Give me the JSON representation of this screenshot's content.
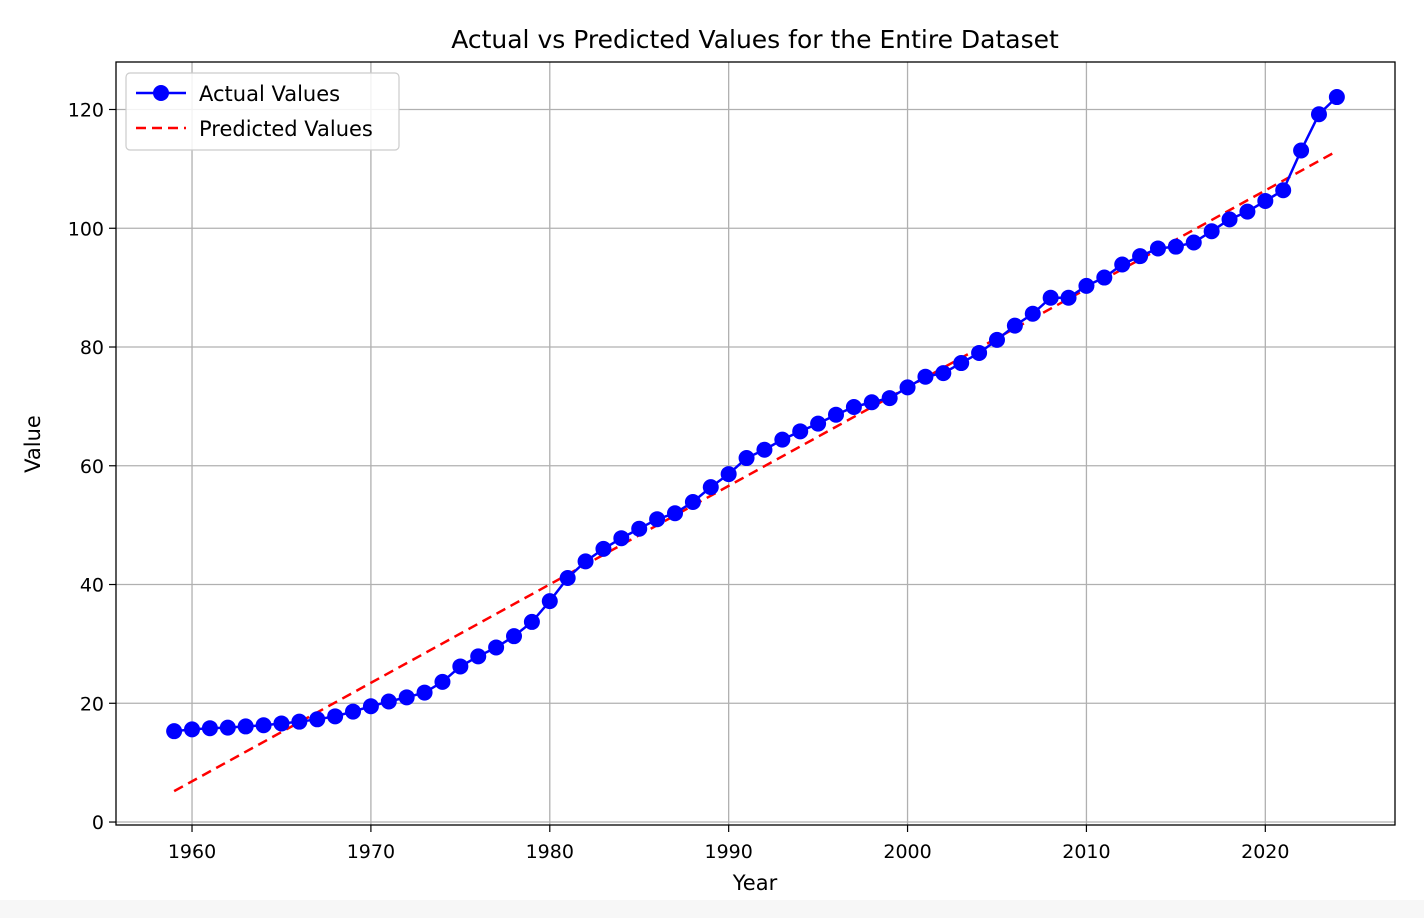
{
  "chart_data": {
    "type": "line",
    "title": "Actual vs Predicted Values for the Entire Dataset",
    "xlabel": "Year",
    "ylabel": "Value",
    "xlim": [
      1955.75,
      2027.25
    ],
    "ylim": [
      -0.5,
      128
    ],
    "xticks": [
      1960,
      1970,
      1980,
      1990,
      2000,
      2010,
      2020
    ],
    "yticks": [
      0,
      20,
      40,
      60,
      80,
      100,
      120
    ],
    "grid": true,
    "legend_position": "top-left",
    "x": [
      1959,
      1960,
      1961,
      1962,
      1963,
      1964,
      1965,
      1966,
      1967,
      1968,
      1969,
      1970,
      1971,
      1972,
      1973,
      1974,
      1975,
      1976,
      1977,
      1978,
      1979,
      1980,
      1981,
      1982,
      1983,
      1984,
      1985,
      1986,
      1987,
      1988,
      1989,
      1990,
      1991,
      1992,
      1993,
      1994,
      1995,
      1996,
      1997,
      1998,
      1999,
      2000,
      2001,
      2002,
      2003,
      2004,
      2005,
      2006,
      2007,
      2008,
      2009,
      2010,
      2011,
      2012,
      2013,
      2014,
      2015,
      2016,
      2017,
      2018,
      2019,
      2020,
      2021,
      2022,
      2023,
      2024
    ],
    "series": [
      {
        "name": "Actual Values",
        "style": "solid-with-markers",
        "color": "#0000ff",
        "values": [
          15.3,
          15.6,
          15.8,
          15.9,
          16.1,
          16.3,
          16.6,
          16.9,
          17.3,
          17.8,
          18.6,
          19.5,
          20.3,
          21.0,
          21.8,
          23.6,
          26.2,
          27.9,
          29.4,
          31.3,
          33.7,
          37.2,
          41.1,
          43.9,
          46.0,
          47.8,
          49.4,
          51.0,
          52.0,
          53.9,
          56.4,
          58.6,
          61.3,
          62.7,
          64.4,
          65.8,
          67.1,
          68.6,
          69.9,
          70.7,
          71.4,
          73.2,
          75.0,
          75.6,
          77.3,
          79.0,
          81.2,
          83.6,
          85.6,
          88.3,
          88.3,
          90.3,
          91.7,
          93.9,
          95.3,
          96.6,
          96.9,
          97.6,
          99.5,
          101.5,
          102.8,
          104.6,
          106.4,
          113.1,
          119.2,
          122.1
        ]
      },
      {
        "name": "Predicted Values",
        "style": "dashed",
        "color": "#ff0000",
        "line": {
          "x": [
            1959,
            2024
          ],
          "y": [
            5.2,
            113.0
          ]
        }
      }
    ]
  }
}
